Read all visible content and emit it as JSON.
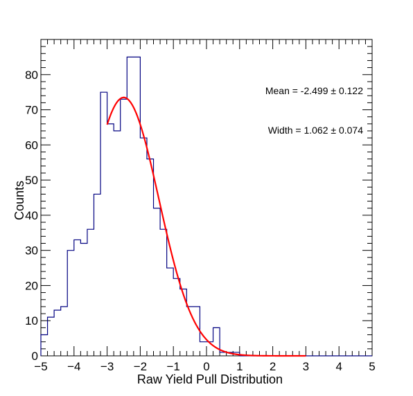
{
  "chart_data": {
    "type": "histogram",
    "xlabel": "Raw Yield Pull Distribution",
    "ylabel": "Counts",
    "xlim": [
      -5,
      5
    ],
    "ylim": [
      0,
      90
    ],
    "x_ticks": [
      "−5",
      "−4",
      "−3",
      "−2",
      "−1",
      "0",
      "1",
      "2",
      "3",
      "4",
      "5"
    ],
    "y_ticks": [
      "0",
      "10",
      "20",
      "30",
      "40",
      "50",
      "60",
      "70",
      "80"
    ],
    "grid": false,
    "bin_edges": [
      -5.0,
      -4.8,
      -4.6,
      -4.4,
      -4.2,
      -4.0,
      -3.8,
      -3.6,
      -3.4,
      -3.2,
      -3.0,
      -2.8,
      -2.6,
      -2.4,
      -2.2,
      -2.0,
      -1.8,
      -1.6,
      -1.4,
      -1.2,
      -1.0,
      -0.8,
      -0.6,
      -0.4,
      -0.2,
      0.0,
      0.2,
      0.4,
      0.6,
      0.8,
      1.0,
      1.2,
      1.4,
      1.6,
      1.8,
      2.0,
      2.2,
      2.4,
      2.6,
      2.8,
      3.0,
      3.2,
      3.4,
      3.6,
      3.8,
      4.0,
      4.2,
      4.4,
      4.6,
      4.8,
      5.0
    ],
    "counts": [
      6,
      11,
      13,
      14,
      30,
      33,
      32,
      36,
      46,
      75,
      66,
      64,
      73,
      85,
      85,
      62,
      56,
      42,
      36,
      25,
      22,
      19,
      14,
      14,
      4,
      4,
      8,
      1,
      1,
      1,
      0,
      0,
      0,
      0,
      0,
      0,
      0,
      0,
      0,
      0,
      0,
      0,
      0,
      0,
      0,
      0,
      0,
      0,
      0,
      0
    ],
    "histogram_color": "#000080",
    "fit": {
      "function": "gaussian",
      "amplitude": 73.5,
      "mean": -2.499,
      "sigma": 1.062,
      "x_range": [
        -3.0,
        3.0
      ],
      "color": "#ff0000"
    },
    "annotations": [
      "Mean = -2.499 ± 0.122",
      "Width = 1.062 ± 0.074"
    ]
  }
}
